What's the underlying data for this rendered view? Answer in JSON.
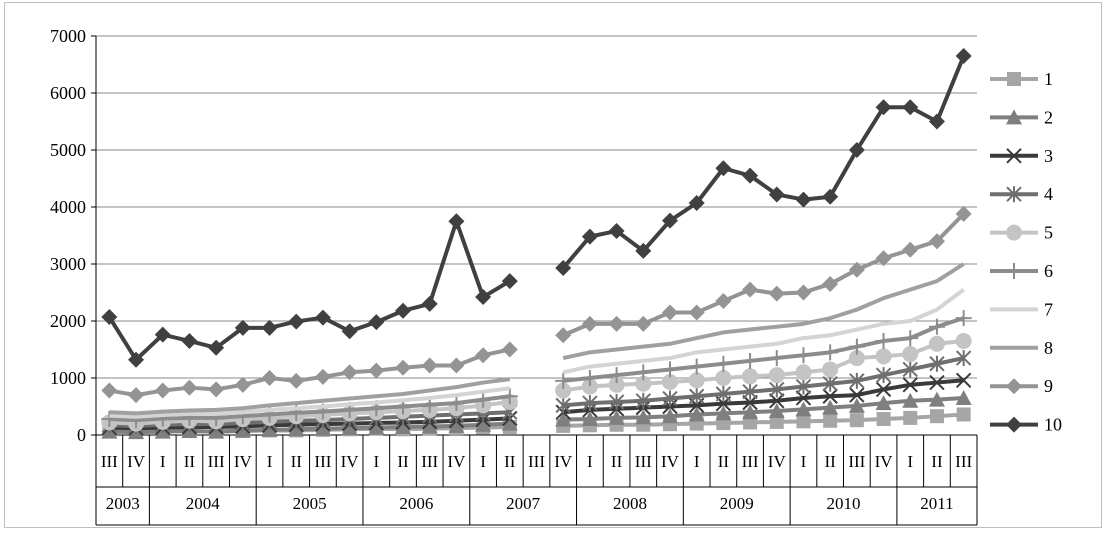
{
  "chart_data": {
    "type": "line",
    "ylim": [
      0,
      7000
    ],
    "y_ticks": [
      "0",
      "1000",
      "2000",
      "3000",
      "4000",
      "5000",
      "6000",
      "7000"
    ],
    "grid": "horizontal",
    "legend_position": "right",
    "quarters": [
      "III",
      "IV",
      "I",
      "II",
      "III",
      "IV",
      "I",
      "II",
      "III",
      "IV",
      "I",
      "II",
      "III",
      "IV",
      "I",
      "II",
      "III",
      "IV",
      "I",
      "II",
      "III",
      "IV",
      "I",
      "II",
      "III",
      "IV",
      "I",
      "II",
      "III",
      "IV",
      "I",
      "II",
      "III"
    ],
    "years": [
      {
        "label": "2003",
        "start": 0,
        "end": 1
      },
      {
        "label": "2004",
        "start": 2,
        "end": 5
      },
      {
        "label": "2005",
        "start": 6,
        "end": 9
      },
      {
        "label": "2006",
        "start": 10,
        "end": 13
      },
      {
        "label": "2007",
        "start": 14,
        "end": 17
      },
      {
        "label": "2008",
        "start": 18,
        "end": 21
      },
      {
        "label": "2009",
        "start": 22,
        "end": 25
      },
      {
        "label": "2010",
        "start": 26,
        "end": 29
      },
      {
        "label": "2011",
        "start": 30,
        "end": 32
      }
    ],
    "series": [
      {
        "name": "1",
        "color": "#a6a6a6",
        "marker": "square",
        "values": [
          80,
          60,
          70,
          70,
          60,
          70,
          80,
          80,
          90,
          100,
          110,
          100,
          110,
          120,
          130,
          140,
          null,
          160,
          170,
          180,
          180,
          190,
          200,
          210,
          220,
          230,
          240,
          250,
          260,
          280,
          300,
          330,
          360
        ]
      },
      {
        "name": "2",
        "color": "#7f7f7f",
        "marker": "triangle",
        "values": [
          60,
          50,
          60,
          70,
          60,
          80,
          90,
          100,
          110,
          120,
          130,
          140,
          150,
          160,
          180,
          200,
          null,
          270,
          280,
          300,
          310,
          330,
          360,
          380,
          400,
          420,
          450,
          480,
          510,
          560,
          600,
          620,
          650
        ]
      },
      {
        "name": "3",
        "color": "#3a3a3a",
        "marker": "x",
        "values": [
          130,
          120,
          130,
          140,
          140,
          150,
          170,
          180,
          190,
          200,
          210,
          220,
          230,
          250,
          270,
          290,
          null,
          400,
          440,
          460,
          480,
          500,
          520,
          550,
          570,
          600,
          650,
          680,
          700,
          800,
          880,
          920,
          960
        ]
      },
      {
        "name": "4",
        "color": "#6f6f6f",
        "marker": "asterisk",
        "values": [
          170,
          160,
          180,
          190,
          190,
          210,
          230,
          250,
          260,
          280,
          300,
          320,
          340,
          360,
          380,
          400,
          null,
          520,
          560,
          580,
          600,
          640,
          680,
          720,
          760,
          800,
          850,
          900,
          950,
          1050,
          1150,
          1250,
          1350
        ]
      },
      {
        "name": "5",
        "color": "#c4c4c4",
        "marker": "circle",
        "values": [
          220,
          200,
          230,
          250,
          240,
          280,
          300,
          330,
          350,
          380,
          400,
          420,
          440,
          470,
          520,
          580,
          null,
          780,
          850,
          880,
          900,
          930,
          960,
          1000,
          1030,
          1050,
          1100,
          1150,
          1350,
          1380,
          1420,
          1600,
          1650
        ]
      },
      {
        "name": "6",
        "color": "#8c8c8c",
        "marker": "plus",
        "values": [
          280,
          260,
          290,
          300,
          300,
          330,
          360,
          390,
          410,
          440,
          470,
          500,
          530,
          560,
          620,
          680,
          null,
          950,
          1000,
          1050,
          1100,
          1150,
          1200,
          1250,
          1300,
          1350,
          1400,
          1450,
          1550,
          1650,
          1700,
          1900,
          2050
        ]
      },
      {
        "name": "7",
        "color": "#d4d4d4",
        "marker": "none",
        "values": [
          340,
          320,
          350,
          370,
          370,
          400,
          440,
          470,
          500,
          540,
          570,
          610,
          650,
          700,
          760,
          820,
          null,
          1100,
          1200,
          1250,
          1300,
          1350,
          1450,
          1500,
          1550,
          1600,
          1700,
          1750,
          1850,
          1950,
          2000,
          2200,
          2550
        ]
      },
      {
        "name": "8",
        "color": "#a0a0a0",
        "marker": "none",
        "values": [
          400,
          380,
          410,
          430,
          440,
          470,
          520,
          560,
          600,
          640,
          680,
          720,
          780,
          840,
          920,
          980,
          null,
          1350,
          1450,
          1500,
          1550,
          1600,
          1700,
          1800,
          1850,
          1900,
          1950,
          2050,
          2200,
          2400,
          2550,
          2700,
          3000
        ]
      },
      {
        "name": "9",
        "color": "#949494",
        "marker": "diamond",
        "values": [
          780,
          700,
          780,
          830,
          800,
          880,
          1000,
          950,
          1020,
          1100,
          1130,
          1180,
          1220,
          1220,
          1400,
          1500,
          null,
          1750,
          1950,
          1950,
          1950,
          2150,
          2150,
          2350,
          2550,
          2480,
          2500,
          2650,
          2900,
          3100,
          3250,
          3400,
          3880
        ]
      },
      {
        "name": "10",
        "color": "#404040",
        "marker": "diamond",
        "values": [
          2070,
          1320,
          1760,
          1650,
          1530,
          1880,
          1880,
          1990,
          2060,
          1820,
          1980,
          2180,
          2300,
          3750,
          2420,
          2700,
          null,
          2930,
          3480,
          3580,
          3230,
          3760,
          4070,
          4680,
          4550,
          4220,
          4130,
          4180,
          5000,
          5750,
          5750,
          5500,
          6650
        ]
      }
    ]
  }
}
